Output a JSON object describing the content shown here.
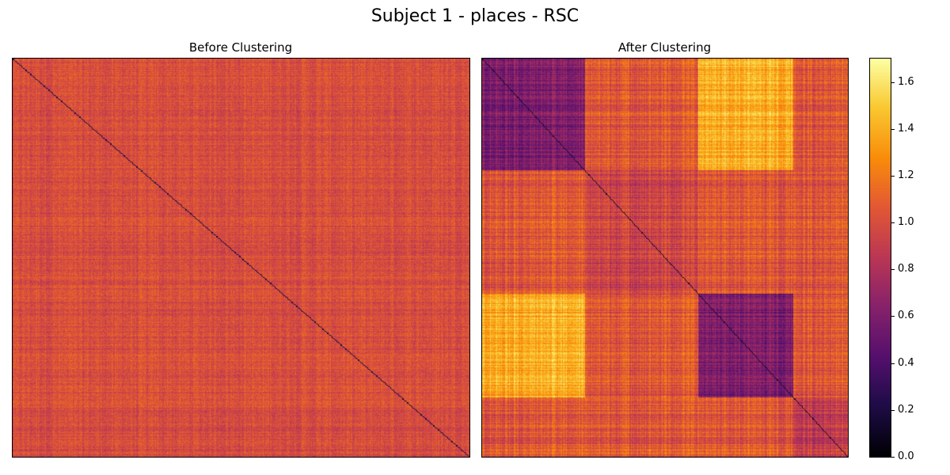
{
  "chart_data": {
    "type": "heatmap",
    "title": "Subject 1 - places - RSC",
    "colormap": "inferno",
    "panels": [
      {
        "title": "Before Clustering",
        "mean": 1.0,
        "spread": 0.12,
        "diagonal": 0.0,
        "structure": "random"
      },
      {
        "title": "After Clustering",
        "diagonal": 0.0,
        "structure": "clustered",
        "blocks": [
          {
            "rows": [
              0.0,
              0.28
            ],
            "cols": [
              0.0,
              0.28
            ],
            "value": 0.6
          },
          {
            "rows": [
              0.0,
              0.28
            ],
            "cols": [
              0.59,
              0.85
            ],
            "value": 1.4
          },
          {
            "rows": [
              0.59,
              0.85
            ],
            "cols": [
              0.0,
              0.28
            ],
            "value": 1.4
          },
          {
            "rows": [
              0.59,
              0.85
            ],
            "cols": [
              0.59,
              0.85
            ],
            "value": 0.6
          },
          {
            "rows": [
              0.28,
              0.59
            ],
            "cols": [
              0.28,
              0.59
            ],
            "value": 0.95
          },
          {
            "rows": [
              0.85,
              1.0
            ],
            "cols": [
              0.85,
              1.0
            ],
            "value": 0.9
          }
        ],
        "background": 1.05
      }
    ],
    "colorbar": {
      "range": [
        0.0,
        1.7
      ],
      "ticks": [
        "0.0",
        "0.2",
        "0.4",
        "0.6",
        "0.8",
        "1.0",
        "1.2",
        "1.4",
        "1.6"
      ],
      "tick_values": [
        0.0,
        0.2,
        0.4,
        0.6,
        0.8,
        1.0,
        1.2,
        1.4,
        1.6
      ]
    }
  }
}
